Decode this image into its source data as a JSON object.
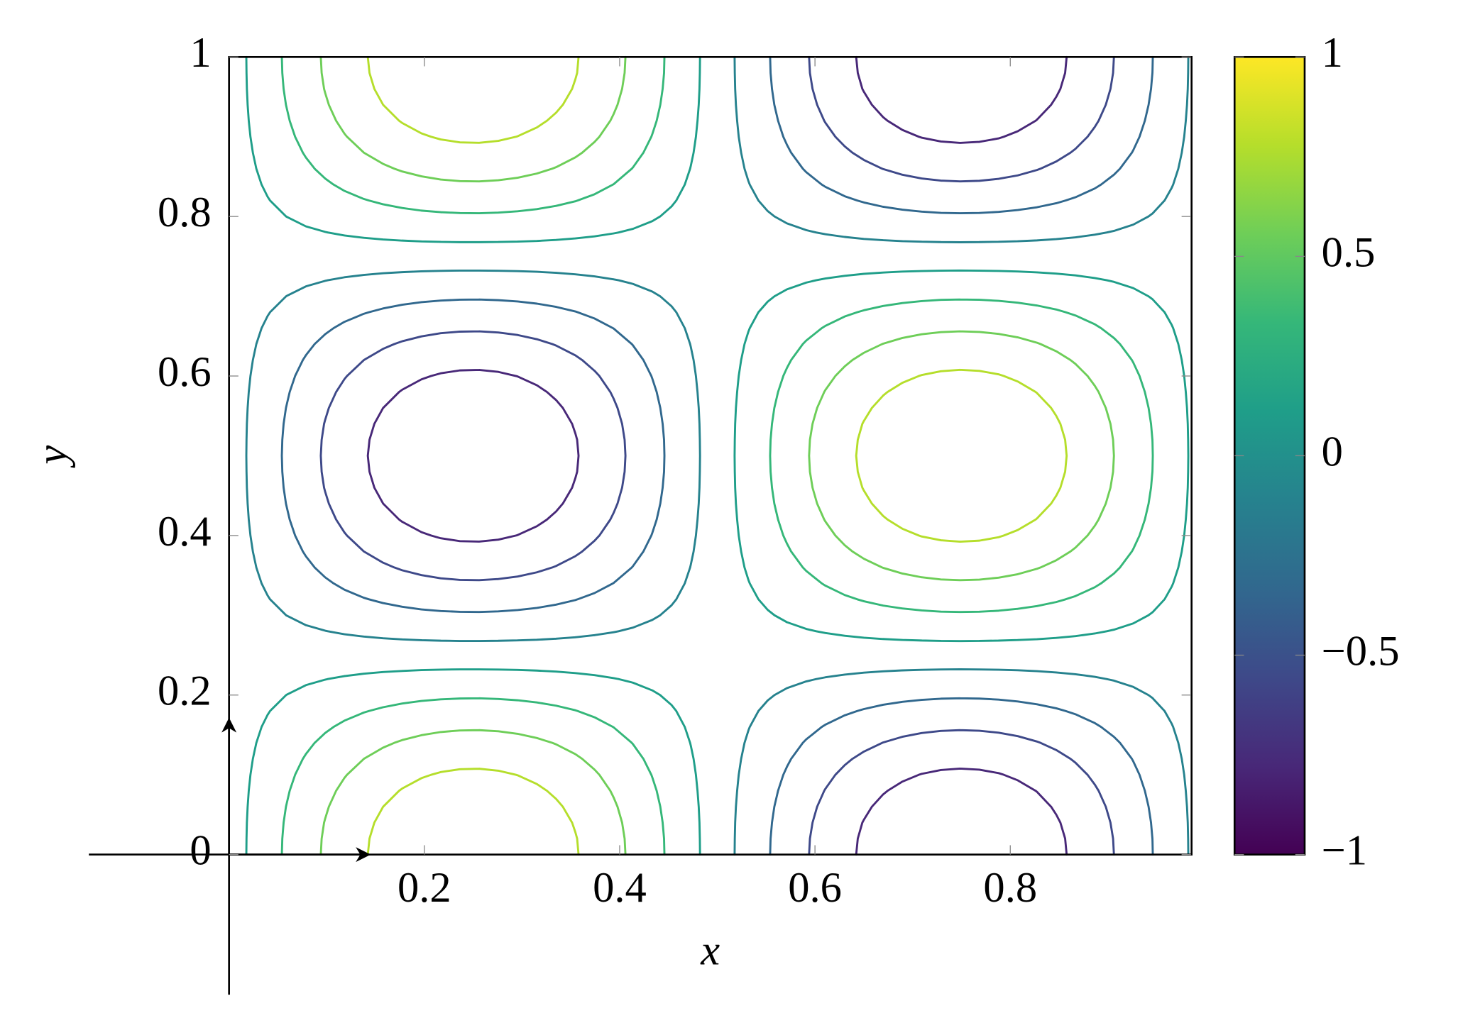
{
  "chart_data": {
    "type": "contour",
    "xlabel": "x",
    "ylabel": "y",
    "xlim": [
      0,
      0.985
    ],
    "ylim": [
      0,
      1
    ],
    "xticks": [
      0.2,
      0.4,
      0.6,
      0.8
    ],
    "yticks": [
      0,
      0.2,
      0.4,
      0.6,
      0.8,
      1
    ],
    "levels": [
      -0.778,
      -0.556,
      -0.333,
      -0.111,
      0.111,
      0.333,
      0.556,
      0.778
    ],
    "colormap": "viridis",
    "clim": [
      -1,
      1
    ],
    "cticks": [
      {
        "value": -1,
        "label": "−1"
      },
      {
        "value": -0.5,
        "label": "−0.5"
      },
      0,
      0.5,
      1
    ]
  }
}
